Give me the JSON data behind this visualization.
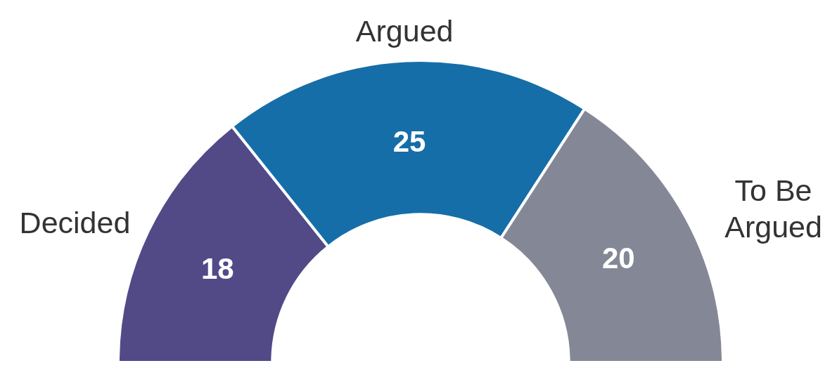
{
  "chart_data": {
    "type": "donut",
    "categories": [
      "Decided",
      "Argued",
      "To Be Argued"
    ],
    "values": [
      18,
      25,
      20
    ],
    "colors": [
      "#514a87",
      "#156ea8",
      "#848896"
    ],
    "data_labels": true,
    "legend": false
  }
}
